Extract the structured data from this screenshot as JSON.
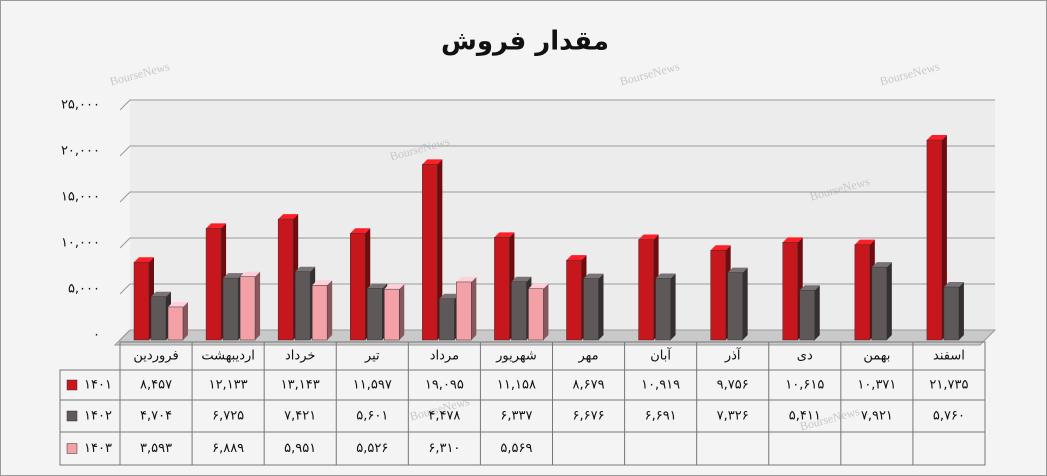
{
  "chart_data": {
    "type": "bar",
    "title": "مقدار فروش",
    "watermark": "BourseNews",
    "categories": [
      "فروردین",
      "اردیبهشت",
      "خرداد",
      "تیر",
      "مرداد",
      "شهریور",
      "مهر",
      "آبان",
      "آذر",
      "دی",
      "بهمن",
      "اسفند"
    ],
    "series": [
      {
        "name": "۱۴۰۱",
        "color": "#c8161d",
        "values": [
          8457,
          12133,
          13143,
          11597,
          19095,
          11158,
          8679,
          10919,
          9756,
          10615,
          10371,
          21735
        ],
        "value_labels": [
          "۸,۴۵۷",
          "۱۲,۱۳۳",
          "۱۳,۱۴۳",
          "۱۱,۵۹۷",
          "۱۹,۰۹۵",
          "۱۱,۱۵۸",
          "۸,۶۷۹",
          "۱۰,۹۱۹",
          "۹,۷۵۶",
          "۱۰,۶۱۵",
          "۱۰,۳۷۱",
          "۲۱,۷۳۵"
        ]
      },
      {
        "name": "۱۴۰۲",
        "color": "#5e5859",
        "values": [
          4704,
          6725,
          7421,
          5601,
          4478,
          6337,
          6676,
          6691,
          7326,
          5411,
          7921,
          5760
        ],
        "value_labels": [
          "۴,۷۰۴",
          "۶,۷۲۵",
          "۷,۴۲۱",
          "۵,۶۰۱",
          "۴,۴۷۸",
          "۶,۳۳۷",
          "۶,۶۷۶",
          "۶,۶۹۱",
          "۷,۳۲۶",
          "۵,۴۱۱",
          "۷,۹۲۱",
          "۵,۷۶۰"
        ]
      },
      {
        "name": "۱۴۰۳",
        "color": "#f4a0a7",
        "values": [
          3593,
          6889,
          5951,
          5526,
          6310,
          5569,
          null,
          null,
          null,
          null,
          null,
          null
        ],
        "value_labels": [
          "۳,۵۹۳",
          "۶,۸۸۹",
          "۵,۹۵۱",
          "۵,۵۲۶",
          "۶,۳۱۰",
          "۵,۵۶۹",
          null,
          null,
          null,
          null,
          null,
          null
        ]
      }
    ],
    "ylim": [
      0,
      25000
    ],
    "yticks": [
      {
        "value": 0,
        "label": "۰"
      },
      {
        "value": 5000,
        "label": "۵,۰۰۰"
      },
      {
        "value": 10000,
        "label": "۱۰,۰۰۰"
      },
      {
        "value": 15000,
        "label": "۱۵,۰۰۰"
      },
      {
        "value": 20000,
        "label": "۲۰,۰۰۰"
      },
      {
        "value": 25000,
        "label": "۲۵,۰۰۰"
      }
    ],
    "grid": true
  }
}
